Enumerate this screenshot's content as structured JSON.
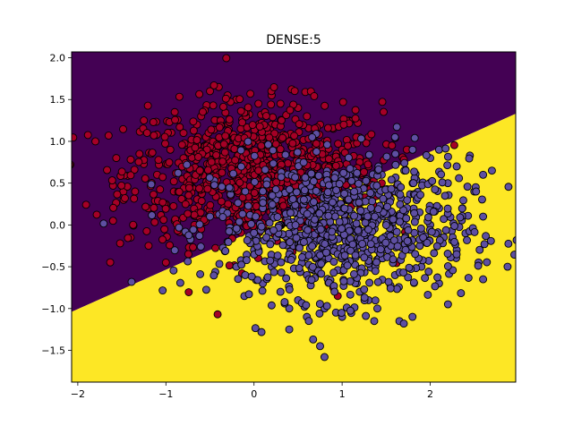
{
  "chart_data": {
    "type": "scatter",
    "title": "DENSE:5",
    "xlabel": "",
    "ylabel": "",
    "xlim": [
      -2.07,
      2.97
    ],
    "ylim": [
      -1.88,
      2.07
    ],
    "x_ticks": [
      -2,
      -1,
      0,
      1,
      2
    ],
    "y_ticks": [
      -1.5,
      -1.0,
      -0.5,
      0.0,
      0.5,
      1.0,
      1.5,
      2.0
    ],
    "x_tick_labels": [
      "−2",
      "−1",
      "0",
      "1",
      "2"
    ],
    "y_tick_labels": [
      "−1.5",
      "−1.0",
      "−0.5",
      "0.0",
      "0.5",
      "1.0",
      "1.5",
      "2.0"
    ],
    "grid": false,
    "legend": "none",
    "decision_boundary": {
      "description": "linear boundary separating two filled regions",
      "line": [
        [
          -2.07,
          -1.04
        ],
        [
          2.97,
          1.33
        ]
      ],
      "region_above_color": "#440154",
      "region_below_color": "#fde725"
    },
    "series": [
      {
        "class": 0,
        "color": "#a50026",
        "center": [
          0.0,
          0.62
        ],
        "spread": [
          0.72,
          0.42
        ],
        "count": 900,
        "points": [
          [
            -1.8,
            1.0
          ],
          [
            -1.6,
            0.47
          ],
          [
            -1.48,
            0.3
          ],
          [
            -1.6,
            0.05
          ],
          [
            -1.4,
            -0.15
          ],
          [
            -1.52,
            -0.22
          ],
          [
            -1.3,
            0.85
          ],
          [
            -1.25,
            1.25
          ],
          [
            -1.0,
            -0.45
          ],
          [
            -1.0,
            0.25
          ],
          [
            -0.9,
            1.35
          ],
          [
            -0.6,
            1.3
          ],
          [
            -0.5,
            1.6
          ],
          [
            -0.4,
            1.65
          ],
          [
            -0.3,
            1.55
          ],
          [
            -0.2,
            1.5
          ],
          [
            -0.1,
            1.35
          ],
          [
            0.05,
            1.45
          ],
          [
            0.2,
            1.55
          ],
          [
            0.3,
            1.45
          ],
          [
            0.5,
            1.4
          ],
          [
            0.6,
            1.3
          ],
          [
            0.75,
            1.2
          ],
          [
            0.9,
            1.15
          ],
          [
            1.0,
            0.9
          ],
          [
            1.2,
            0.8
          ],
          [
            1.3,
            0.7
          ],
          [
            1.3,
            1.05
          ],
          [
            1.05,
            0.6
          ],
          [
            0.9,
            0.35
          ],
          [
            0.6,
            0.5
          ],
          [
            0.3,
            0.7
          ],
          [
            0.1,
            0.85
          ],
          [
            -0.2,
            0.9
          ],
          [
            -0.5,
            1.0
          ],
          [
            -0.8,
            0.8
          ],
          [
            -1.1,
            0.6
          ],
          [
            -0.7,
            0.45
          ],
          [
            -0.4,
            0.35
          ],
          [
            -0.9,
            0.05
          ],
          [
            -0.6,
            -0.05
          ],
          [
            -0.3,
            0.2
          ],
          [
            0.0,
            0.4
          ],
          [
            0.4,
            0.25
          ],
          [
            0.7,
            0.1
          ],
          [
            1.0,
            0.15
          ],
          [
            1.15,
            -0.2
          ],
          [
            1.0,
            -0.55
          ],
          [
            0.9,
            -0.75
          ],
          [
            0.95,
            -0.85
          ],
          [
            -1.2,
            0.2
          ],
          [
            -0.8,
            1.1
          ],
          [
            0.4,
            1.0
          ],
          [
            0.8,
            0.85
          ],
          [
            -0.15,
            1.15
          ],
          [
            0.2,
            1.2
          ],
          [
            -1.35,
            0.4
          ],
          [
            -0.95,
            0.9
          ],
          [
            0.55,
            0.65
          ],
          [
            1.45,
            0.5
          ]
        ]
      },
      {
        "class": 1,
        "color": "#5e4fa2",
        "center": [
          1.0,
          -0.05
        ],
        "spread": [
          0.72,
          0.42
        ],
        "count": 900,
        "points": [
          [
            -0.5,
            0.1
          ],
          [
            -0.3,
            -0.2
          ],
          [
            -0.2,
            -0.5
          ],
          [
            -0.1,
            -0.6
          ],
          [
            0.0,
            -0.3
          ],
          [
            0.1,
            -0.7
          ],
          [
            0.2,
            -0.5
          ],
          [
            0.3,
            -0.8
          ],
          [
            0.4,
            -1.0
          ],
          [
            0.5,
            -0.9
          ],
          [
            0.4,
            -1.25
          ],
          [
            0.6,
            -1.1
          ],
          [
            0.8,
            -1.0
          ],
          [
            0.75,
            -1.45
          ],
          [
            0.8,
            -1.58
          ],
          [
            1.0,
            -1.1
          ],
          [
            1.2,
            -0.8
          ],
          [
            1.3,
            -0.9
          ],
          [
            1.4,
            -1.0
          ],
          [
            1.65,
            -1.15
          ],
          [
            1.7,
            -1.18
          ],
          [
            1.6,
            -0.6
          ],
          [
            1.9,
            -0.5
          ],
          [
            2.1,
            -0.7
          ],
          [
            2.6,
            -0.65
          ],
          [
            2.3,
            -0.3
          ],
          [
            2.4,
            -0.1
          ],
          [
            2.6,
            0.1
          ],
          [
            2.5,
            0.4
          ],
          [
            2.6,
            0.6
          ],
          [
            2.7,
            0.65
          ],
          [
            2.45,
            0.83
          ],
          [
            2.3,
            0.7
          ],
          [
            2.1,
            0.9
          ],
          [
            2.0,
            0.8
          ],
          [
            1.8,
            0.9
          ],
          [
            1.6,
            1.05
          ],
          [
            1.45,
            0.6
          ],
          [
            1.3,
            0.3
          ],
          [
            1.1,
            0.0
          ],
          [
            0.9,
            -0.2
          ],
          [
            0.7,
            -0.4
          ],
          [
            0.5,
            -0.2
          ],
          [
            0.3,
            0.0
          ],
          [
            0.1,
            0.2
          ],
          [
            -0.1,
            0.4
          ],
          [
            1.5,
            0.2
          ],
          [
            1.7,
            0.0
          ],
          [
            1.9,
            -0.2
          ],
          [
            2.1,
            0.2
          ],
          [
            1.2,
            0.4
          ],
          [
            1.0,
            -0.4
          ],
          [
            0.6,
            -0.6
          ],
          [
            2.2,
            0.5
          ],
          [
            1.8,
            0.5
          ],
          [
            0.8,
            -0.3
          ],
          [
            1.4,
            -0.3
          ],
          [
            2.0,
            0.0
          ],
          [
            0.2,
            -0.2
          ],
          [
            1.6,
            0.4
          ]
        ]
      }
    ]
  }
}
